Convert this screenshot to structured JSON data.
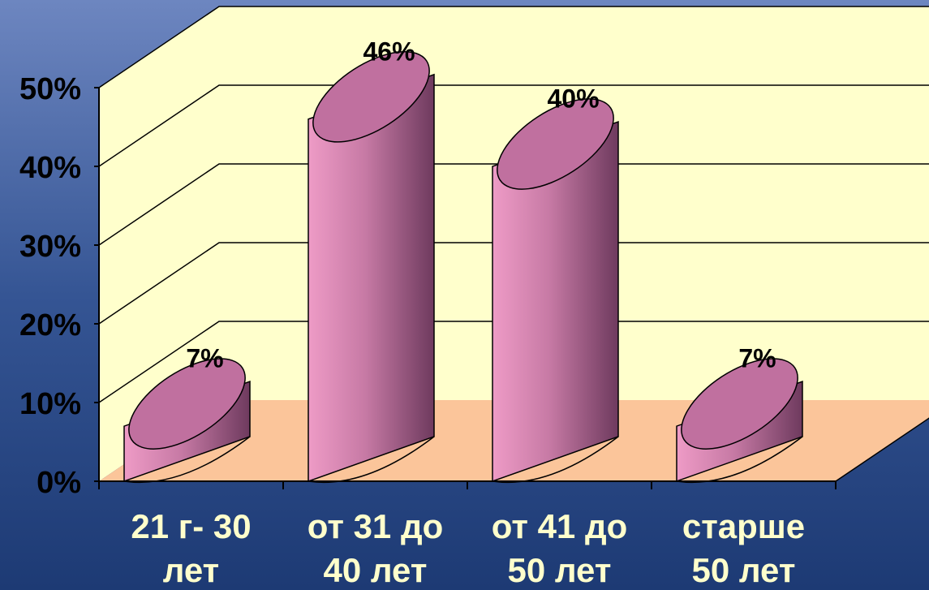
{
  "chart_data": {
    "type": "bar",
    "categories": [
      [
        "21 г- 30",
        "лет"
      ],
      [
        "от 31 до",
        "40 лет"
      ],
      [
        "от 41 до",
        "50 лет"
      ],
      [
        "старше",
        "50 лет"
      ]
    ],
    "values": [
      7,
      46,
      40,
      7
    ],
    "data_labels": [
      "7%",
      "46%",
      "40%",
      "7%"
    ],
    "y_ticks": [
      "0%",
      "10%",
      "20%",
      "30%",
      "40%",
      "50%"
    ],
    "ylim": [
      0,
      50
    ],
    "grid": true,
    "legend": "none",
    "three_d": true,
    "colors": {
      "bar_front": "#d97fb0",
      "bar_top": "#c0709f",
      "wall": "#ffffcc",
      "floor": "#fbc59a",
      "tick_text": "#000000",
      "category_text": "#ffffcc",
      "background": "#2f4f8e"
    }
  }
}
